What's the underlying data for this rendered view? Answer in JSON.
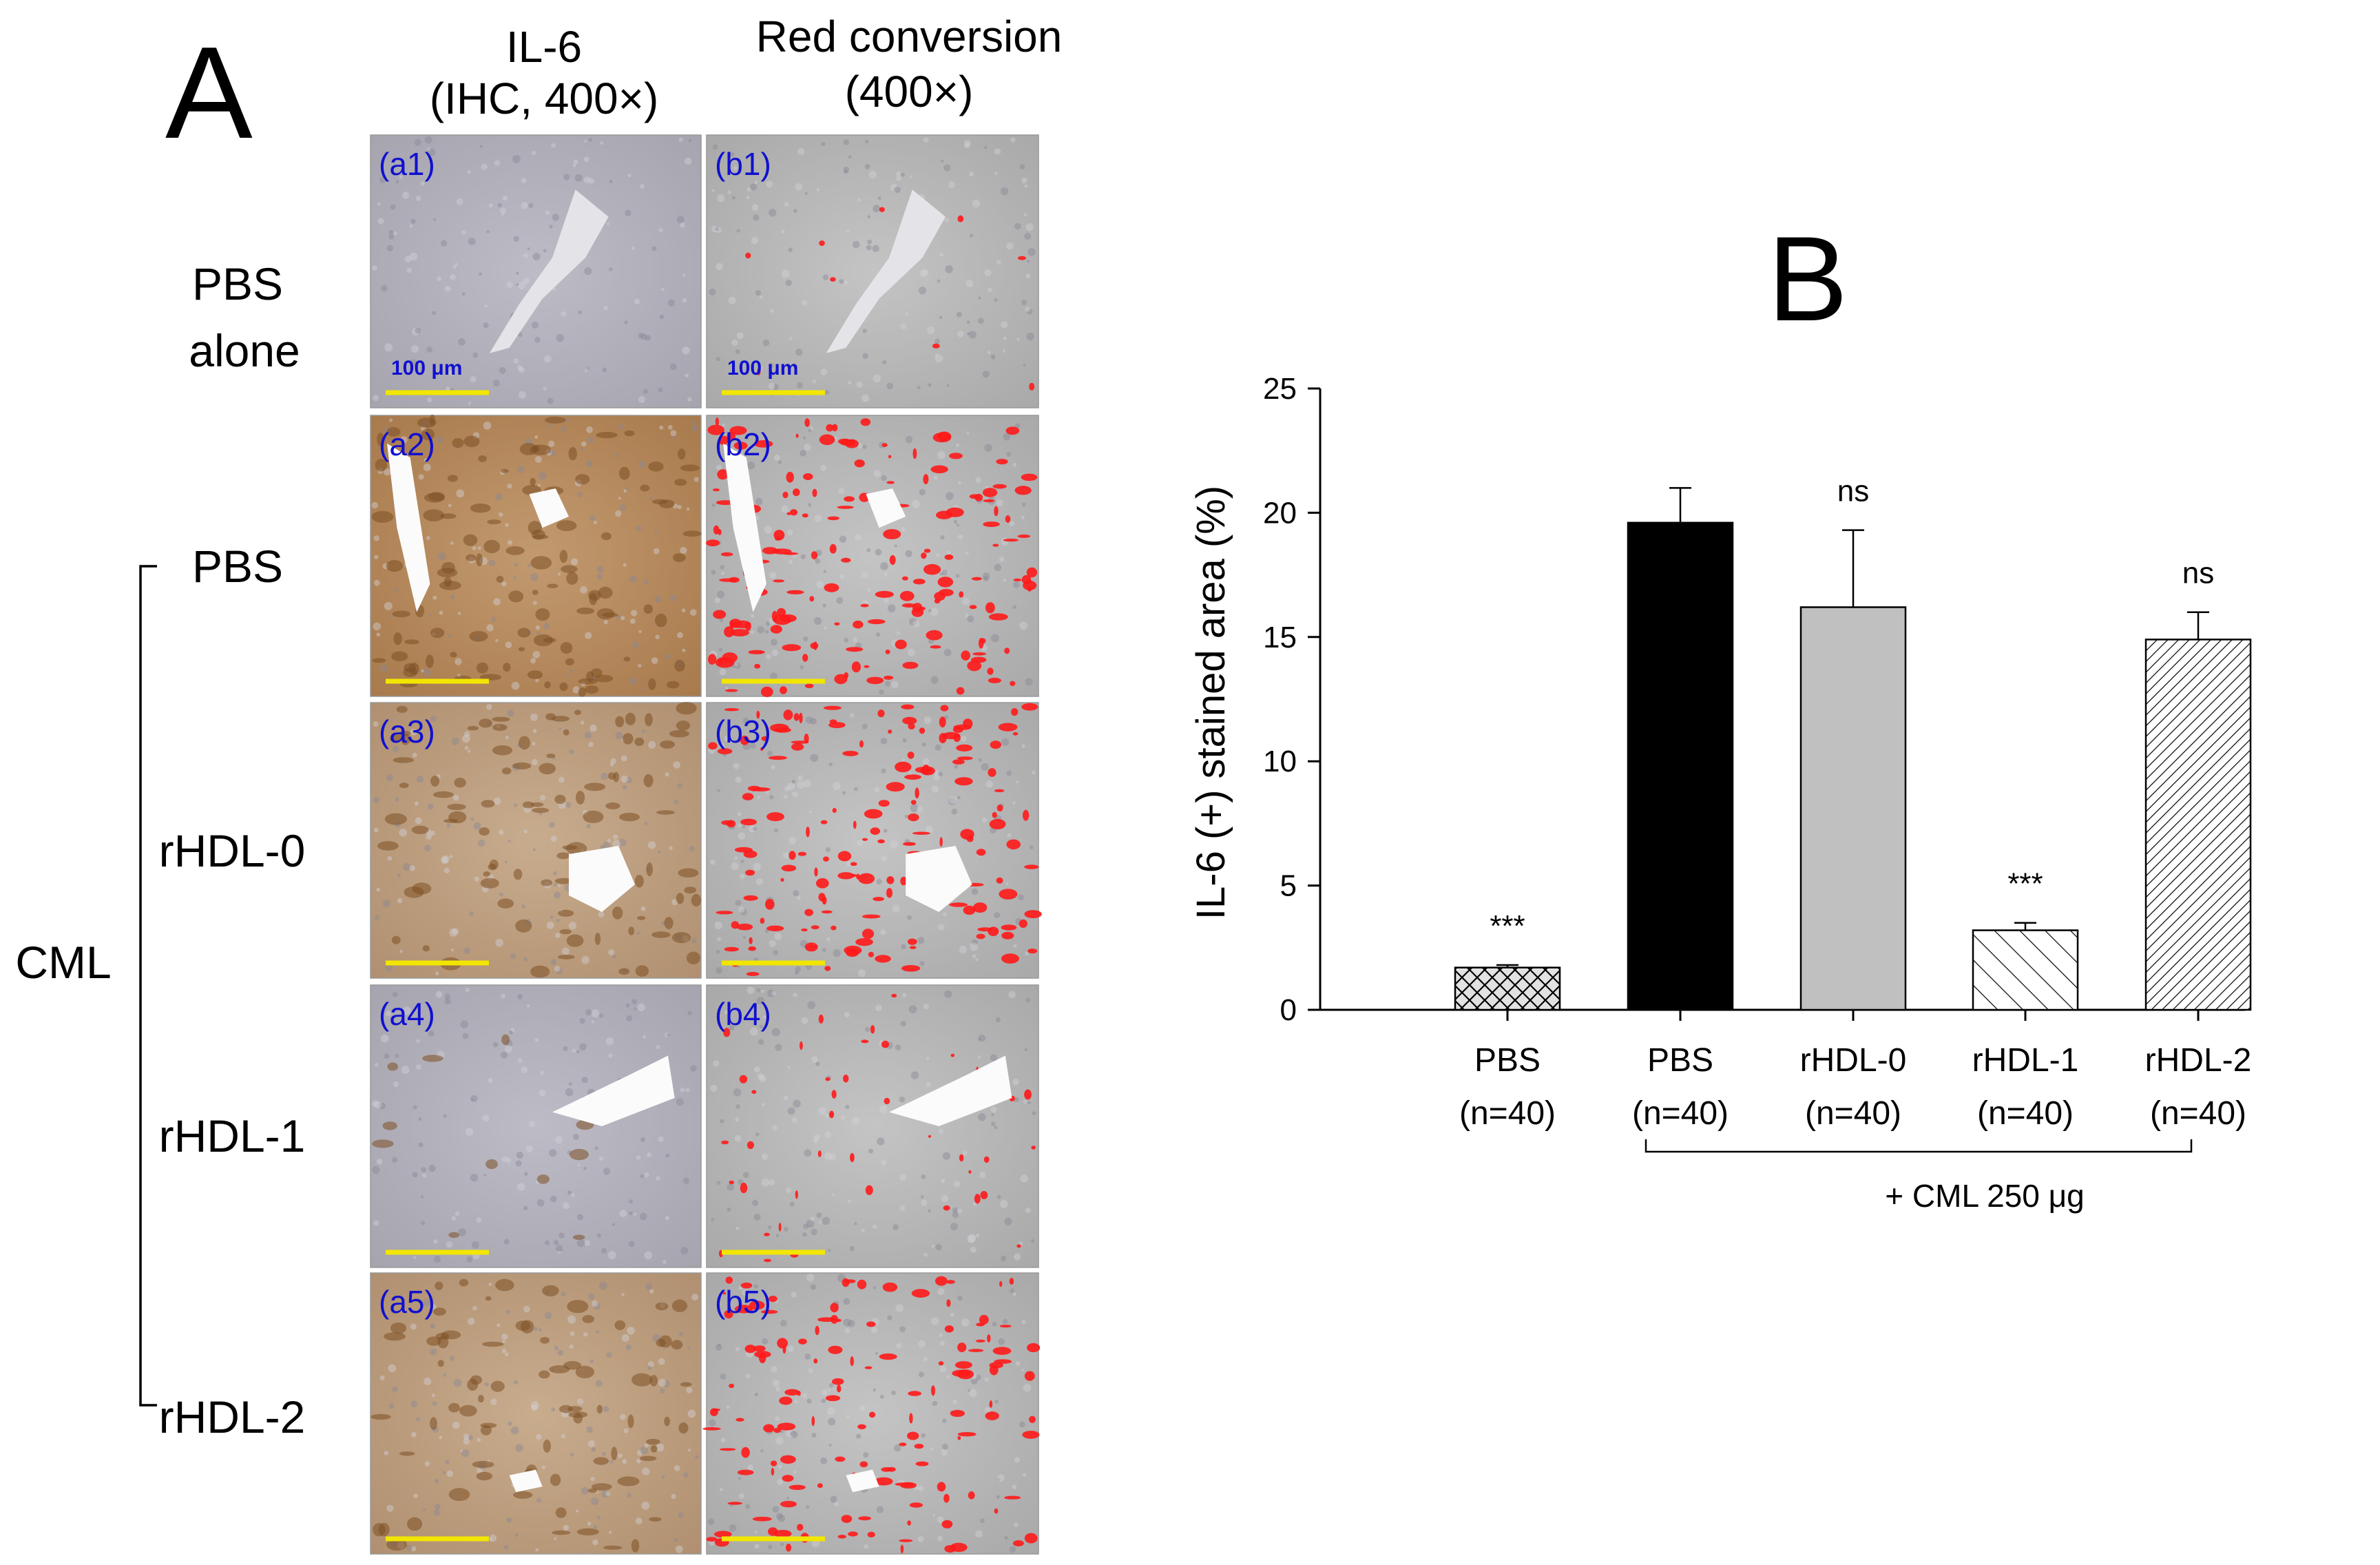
{
  "panel_a": {
    "letter": "A",
    "col_headers": [
      {
        "line1": "IL-6",
        "line2": "(IHC, 400×)"
      },
      {
        "line1": "Red conversion",
        "line2": "(400×)"
      }
    ],
    "row_labels": [
      {
        "line1": "PBS",
        "line2": "alone"
      },
      {
        "line1": "PBS",
        "line2": ""
      },
      {
        "line1": "rHDL-0",
        "line2": ""
      },
      {
        "line1": "rHDL-1",
        "line2": ""
      },
      {
        "line1": "rHDL-2",
        "line2": ""
      }
    ],
    "group_label": "CML",
    "micrographs": [
      {
        "left": "(a1)",
        "right": "(b1)"
      },
      {
        "left": "(a2)",
        "right": "(b2)"
      },
      {
        "left": "(a3)",
        "right": "(b3)"
      },
      {
        "left": "(a4)",
        "right": "(b4)"
      },
      {
        "left": "(a5)",
        "right": "(b5)"
      }
    ],
    "scale_bar_label": "100 μm",
    "colors": {
      "panel_label": "#1010d0",
      "scale_bar": "#f2e600",
      "red_overlay": "#ff1a1a",
      "ihc_stain": "#a0703a",
      "tissue_gray": "#b5b5b5"
    }
  },
  "chart_data": {
    "type": "bar",
    "letter": "B",
    "ylabel": "IL-6 (+) stained area (%)",
    "ylim": [
      0,
      25
    ],
    "yticks": [
      0,
      5,
      10,
      15,
      20,
      25
    ],
    "categories": [
      {
        "name": "PBS",
        "n": "(n=40)"
      },
      {
        "name": "PBS",
        "n": "(n=40)"
      },
      {
        "name": "rHDL-0",
        "n": "(n=40)"
      },
      {
        "name": "rHDL-1",
        "n": "(n=40)"
      },
      {
        "name": "rHDL-2",
        "n": "(n=40)"
      }
    ],
    "values": [
      1.7,
      19.6,
      16.2,
      3.2,
      14.9
    ],
    "errors": [
      0.1,
      1.4,
      3.1,
      0.3,
      1.1
    ],
    "significance": [
      "***",
      "",
      "ns",
      "***",
      "ns"
    ],
    "fills": [
      "crosshatch",
      "black",
      "gray",
      "hatch-light",
      "hatch-dense"
    ],
    "bracket_label": "+ CML 250 μg",
    "grid": false,
    "colors": {
      "black_bar": "#000000",
      "gray_bar": "#c0c0c0",
      "hatch_bg": "#ffffff"
    }
  }
}
